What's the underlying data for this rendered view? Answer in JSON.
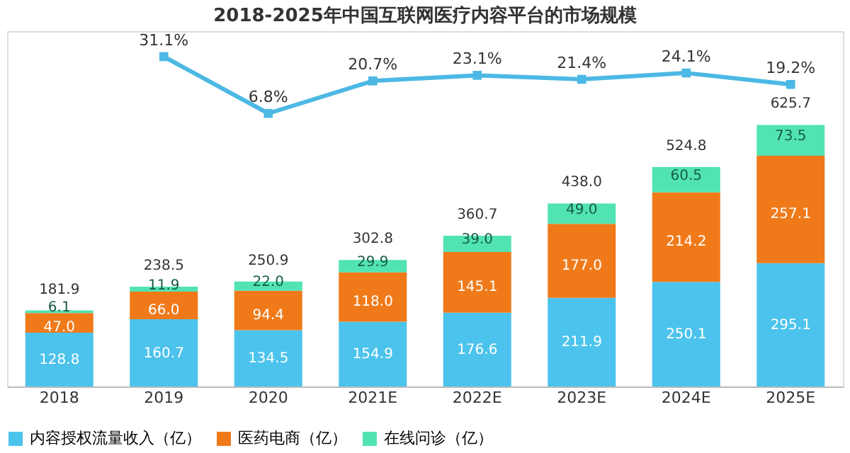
{
  "chart_data": {
    "type": "bar",
    "title": "2018-2025年中国互联网医疗内容平台的市场规模",
    "categories": [
      "2018",
      "2019",
      "2020",
      "2021E",
      "2022E",
      "2023E",
      "2024E",
      "2025E"
    ],
    "stacked": true,
    "legend": "bottom",
    "tick_labels": "x",
    "ylim": [
      0,
      850
    ],
    "y2lim": [
      -110,
      42
    ],
    "totals": [
      "181.9",
      "238.5",
      "250.9",
      "302.8",
      "360.7",
      "438.0",
      "524.8",
      "625.7"
    ],
    "series": [
      {
        "name": "内容授权流量收入（亿）",
        "color": "#4cc3ec",
        "values": [
          128.8,
          160.7,
          134.5,
          154.9,
          176.6,
          211.9,
          250.1,
          295.1
        ],
        "value_labels": [
          "128.8",
          "160.7",
          "134.5",
          "154.9",
          "176.6",
          "211.9",
          "250.1",
          "295.1"
        ]
      },
      {
        "name": "医药电商（亿）",
        "color": "#f07a1a",
        "values": [
          47.0,
          66.0,
          94.4,
          118.0,
          145.1,
          177.0,
          214.2,
          257.1
        ],
        "value_labels": [
          "47.0",
          "66.0",
          "94.4",
          "118.0",
          "145.1",
          "177.0",
          "214.2",
          "257.1"
        ]
      },
      {
        "name": "在线问诊（亿）",
        "color": "#52e3b2",
        "values": [
          6.1,
          11.9,
          22.0,
          29.9,
          39.0,
          49.0,
          60.5,
          73.5
        ],
        "value_labels": [
          "6.1",
          "11.9",
          "22.0",
          "29.9",
          "39.0",
          "49.0",
          "60.5",
          "73.5"
        ]
      },
      {
        "type": "line",
        "axis": "y2",
        "color": "#4cb8e4",
        "marker": "square",
        "values": [
          null,
          31.1,
          6.8,
          20.7,
          23.1,
          21.4,
          24.1,
          19.2
        ],
        "value_labels": [
          null,
          "31.1%",
          "6.8%",
          "20.7%",
          "23.1%",
          "21.4%",
          "24.1%",
          "19.2%"
        ]
      }
    ]
  }
}
